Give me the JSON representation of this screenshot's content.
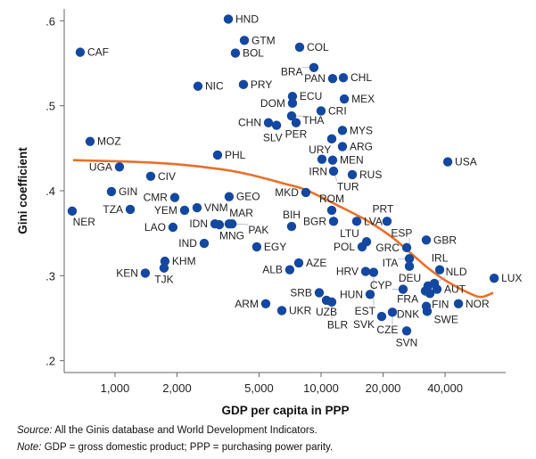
{
  "chart_data": {
    "type": "scatter",
    "title": "",
    "xlabel": "GDP per capita in PPP",
    "ylabel": "Gini coefficient",
    "x_scale": "log",
    "xlim": [
      567,
      78700
    ],
    "ylim": [
      0.186,
      0.614
    ],
    "x_ticks": [
      1000,
      2000,
      5000,
      10000,
      20000,
      40000
    ],
    "x_tick_labels": [
      "1,000",
      "2,000",
      "5,000",
      "10,000",
      "20,000",
      "40,000"
    ],
    "y_ticks": [
      0.2,
      0.3,
      0.4,
      0.5,
      0.6
    ],
    "y_tick_labels": [
      ".2",
      ".3",
      ".4",
      ".5",
      ".6"
    ],
    "grid": false,
    "legend": "none",
    "point_color": "#1448a0",
    "fit_color": "#e8702a",
    "points": [
      {
        "label": "HND",
        "x": 3548,
        "y": 0.602
      },
      {
        "label": "GTM",
        "x": 4245,
        "y": 0.577
      },
      {
        "label": "BOL",
        "x": 3840,
        "y": 0.562
      },
      {
        "label": "COL",
        "x": 7870,
        "y": 0.569
      },
      {
        "label": "CAF",
        "x": 678,
        "y": 0.563
      },
      {
        "label": "BRA",
        "x": 9230,
        "y": 0.545
      },
      {
        "label": "PAN",
        "x": 11380,
        "y": 0.532
      },
      {
        "label": "CHL",
        "x": 12830,
        "y": 0.533
      },
      {
        "label": "NIC",
        "x": 2527,
        "y": 0.523
      },
      {
        "label": "PRY",
        "x": 4200,
        "y": 0.525
      },
      {
        "label": "ECU",
        "x": 7265,
        "y": 0.511
      },
      {
        "label": "DOM",
        "x": 7265,
        "y": 0.503
      },
      {
        "label": "MEX",
        "x": 12970,
        "y": 0.508
      },
      {
        "label": "CRI",
        "x": 10000,
        "y": 0.494
      },
      {
        "label": "THA",
        "x": 7195,
        "y": 0.488
      },
      {
        "label": "CHN",
        "x": 5555,
        "y": 0.48
      },
      {
        "label": "SLV",
        "x": 6080,
        "y": 0.477
      },
      {
        "label": "PER",
        "x": 7565,
        "y": 0.48
      },
      {
        "label": "MYS",
        "x": 12700,
        "y": 0.471
      },
      {
        "label": "URY",
        "x": 11270,
        "y": 0.461
      },
      {
        "label": "ARG",
        "x": 12700,
        "y": 0.452
      },
      {
        "label": "IRN",
        "x": 10100,
        "y": 0.437
      },
      {
        "label": "MEN",
        "x": 11380,
        "y": 0.436
      },
      {
        "label": "TUR",
        "x": 11500,
        "y": 0.423
      },
      {
        "label": "RUS",
        "x": 14180,
        "y": 0.419
      },
      {
        "label": "MOZ",
        "x": 757,
        "y": 0.458
      },
      {
        "label": "PHL",
        "x": 3146,
        "y": 0.442
      },
      {
        "label": "UGA",
        "x": 1051,
        "y": 0.428
      },
      {
        "label": "CIV",
        "x": 1490,
        "y": 0.417
      },
      {
        "label": "USA",
        "x": 41200,
        "y": 0.434
      },
      {
        "label": "GIN",
        "x": 961,
        "y": 0.399
      },
      {
        "label": "CMR",
        "x": 1950,
        "y": 0.392
      },
      {
        "label": "GEO",
        "x": 3580,
        "y": 0.393
      },
      {
        "label": "MKD",
        "x": 8440,
        "y": 0.398
      },
      {
        "label": "NER",
        "x": 620,
        "y": 0.376
      },
      {
        "label": "TZA",
        "x": 1186,
        "y": 0.378
      },
      {
        "label": "YEM",
        "x": 2176,
        "y": 0.377
      },
      {
        "label": "VNM",
        "x": 2502,
        "y": 0.38
      },
      {
        "label": "ROM",
        "x": 11270,
        "y": 0.377
      },
      {
        "label": "BGR",
        "x": 11500,
        "y": 0.364
      },
      {
        "label": "LVA",
        "x": 14900,
        "y": 0.364
      },
      {
        "label": "PRT",
        "x": 20900,
        "y": 0.364
      },
      {
        "label": "LAO",
        "x": 1911,
        "y": 0.357
      },
      {
        "label": "IDN",
        "x": 3055,
        "y": 0.361
      },
      {
        "label": "MNG",
        "x": 3210,
        "y": 0.36
      },
      {
        "label": "MAR",
        "x": 3580,
        "y": 0.361
      },
      {
        "label": "PAK",
        "x": 3700,
        "y": 0.361
      },
      {
        "label": "BIH",
        "x": 7195,
        "y": 0.358
      },
      {
        "label": "IND",
        "x": 2710,
        "y": 0.338
      },
      {
        "label": "EGY",
        "x": 4875,
        "y": 0.334
      },
      {
        "label": "LTU",
        "x": 16630,
        "y": 0.34
      },
      {
        "label": "POL",
        "x": 15820,
        "y": 0.334
      },
      {
        "label": "GRC",
        "x": 26040,
        "y": 0.333
      },
      {
        "label": "GBR",
        "x": 32420,
        "y": 0.342
      },
      {
        "label": "KHM",
        "x": 1747,
        "y": 0.317
      },
      {
        "label": "TJK",
        "x": 1730,
        "y": 0.309
      },
      {
        "label": "KEN",
        "x": 1403,
        "y": 0.303
      },
      {
        "label": "AZE",
        "x": 7795,
        "y": 0.315
      },
      {
        "label": "ALB",
        "x": 7050,
        "y": 0.307
      },
      {
        "label": "ITA",
        "x": 26840,
        "y": 0.32
      },
      {
        "label": "ESP",
        "x": 26840,
        "y": 0.311
      },
      {
        "label": "IRL",
        "x": 37660,
        "y": 0.307
      },
      {
        "label": "HRV",
        "x": 16460,
        "y": 0.305
      },
      {
        "label": "EST",
        "x": 17990,
        "y": 0.304
      },
      {
        "label": "LUX",
        "x": 69200,
        "y": 0.297
      },
      {
        "label": "CYP",
        "x": 25000,
        "y": 0.284
      },
      {
        "label": "NLD",
        "x": 35480,
        "y": 0.291
      },
      {
        "label": "DEU",
        "x": 33050,
        "y": 0.288
      },
      {
        "label": "FRA",
        "x": 32100,
        "y": 0.282
      },
      {
        "label": "FIN",
        "x": 33730,
        "y": 0.279
      },
      {
        "label": "AUT",
        "x": 36540,
        "y": 0.284
      },
      {
        "label": "HUN",
        "x": 17300,
        "y": 0.278
      },
      {
        "label": "NOR",
        "x": 46420,
        "y": 0.267
      },
      {
        "label": "DNK",
        "x": 32420,
        "y": 0.264
      },
      {
        "label": "SWE",
        "x": 32740,
        "y": 0.258
      },
      {
        "label": "CZE",
        "x": 22190,
        "y": 0.257
      },
      {
        "label": "SVK",
        "x": 19690,
        "y": 0.252
      },
      {
        "label": "SVN",
        "x": 26040,
        "y": 0.235
      },
      {
        "label": "ARM",
        "x": 5390,
        "y": 0.267
      },
      {
        "label": "UKR",
        "x": 6450,
        "y": 0.259
      },
      {
        "label": "SRB",
        "x": 9800,
        "y": 0.28
      },
      {
        "label": "UZB",
        "x": 10620,
        "y": 0.271
      },
      {
        "label": "BLR",
        "x": 11270,
        "y": 0.269
      }
    ],
    "fit_line": [
      {
        "x": 626,
        "y": 0.436
      },
      {
        "x": 1233,
        "y": 0.434
      },
      {
        "x": 2029,
        "y": 0.431
      },
      {
        "x": 3340,
        "y": 0.425
      },
      {
        "x": 4505,
        "y": 0.419
      },
      {
        "x": 6710,
        "y": 0.408
      },
      {
        "x": 8440,
        "y": 0.401
      },
      {
        "x": 12210,
        "y": 0.382
      },
      {
        "x": 16950,
        "y": 0.364
      },
      {
        "x": 22190,
        "y": 0.345
      },
      {
        "x": 27100,
        "y": 0.327
      },
      {
        "x": 33050,
        "y": 0.309
      },
      {
        "x": 40370,
        "y": 0.294
      },
      {
        "x": 52840,
        "y": 0.279
      },
      {
        "x": 60120,
        "y": 0.275
      },
      {
        "x": 68430,
        "y": 0.28
      }
    ]
  },
  "footnote": {
    "source_prefix": "Source:",
    "source_text": " All the Ginis database and World Development Indicators.",
    "note_prefix": "Note:",
    "note_text": " GDP = gross domestic product; PPP = purchasing power parity."
  }
}
